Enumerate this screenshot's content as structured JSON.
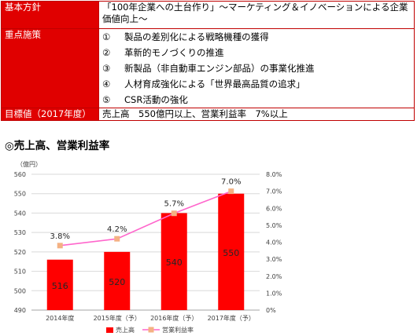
{
  "table": {
    "rows": [
      {
        "label": "基本方針",
        "value": "「100年企業への土台作り」～マーケティング＆イノベーションによる企業価値向上～"
      },
      {
        "label": "重点施策",
        "items": [
          {
            "num": "①",
            "text": "製品の差別化による戦略機種の獲得"
          },
          {
            "num": "②",
            "text": "革新的モノづくりの推進"
          },
          {
            "num": "③",
            "text": "新製品（非自動車エンジン部品）の事業化推進"
          },
          {
            "num": "④",
            "text": "人材育成強化による「世界最高品質の追求」"
          },
          {
            "num": "⑤",
            "text": "CSR活動の強化"
          }
        ]
      },
      {
        "label": "目標値（2017年度）",
        "value": "売上高　550億円以上、営業利益率　7%以上"
      }
    ]
  },
  "section_title": "◎売上高、営業利益率",
  "colors": {
    "accent_red": "#e00000",
    "bar": "#ff0000",
    "line": "#ff66cc",
    "marker": "#f4b183"
  },
  "chart_data": {
    "type": "bar",
    "unit_label": "（億円）",
    "categories": [
      "2014年度",
      "2015年度（予）",
      "2016年度（予）",
      "2017年度（予）"
    ],
    "series": [
      {
        "name": "売上高",
        "type": "bar",
        "axis": "left",
        "values": [
          516,
          520,
          540,
          550
        ],
        "labels": [
          "516",
          "520",
          "540",
          "550"
        ]
      },
      {
        "name": "営業利益率",
        "type": "line",
        "axis": "right",
        "values": [
          3.8,
          4.2,
          5.7,
          7.0
        ],
        "labels": [
          "3.8%",
          "4.2%",
          "5.7%",
          "7.0%"
        ]
      }
    ],
    "y_left": {
      "min": 490,
      "max": 560,
      "step": 10,
      "ticks": [
        "490",
        "500",
        "510",
        "520",
        "530",
        "540",
        "550",
        "560"
      ]
    },
    "y_right": {
      "min": 0,
      "max": 8,
      "step": 1,
      "ticks": [
        "0%",
        "1.0%",
        "2.0%",
        "3.0%",
        "4.0%",
        "5.0%",
        "6.0%",
        "7.0%",
        "8.0%"
      ]
    },
    "grid": true,
    "legend": "bottom"
  }
}
